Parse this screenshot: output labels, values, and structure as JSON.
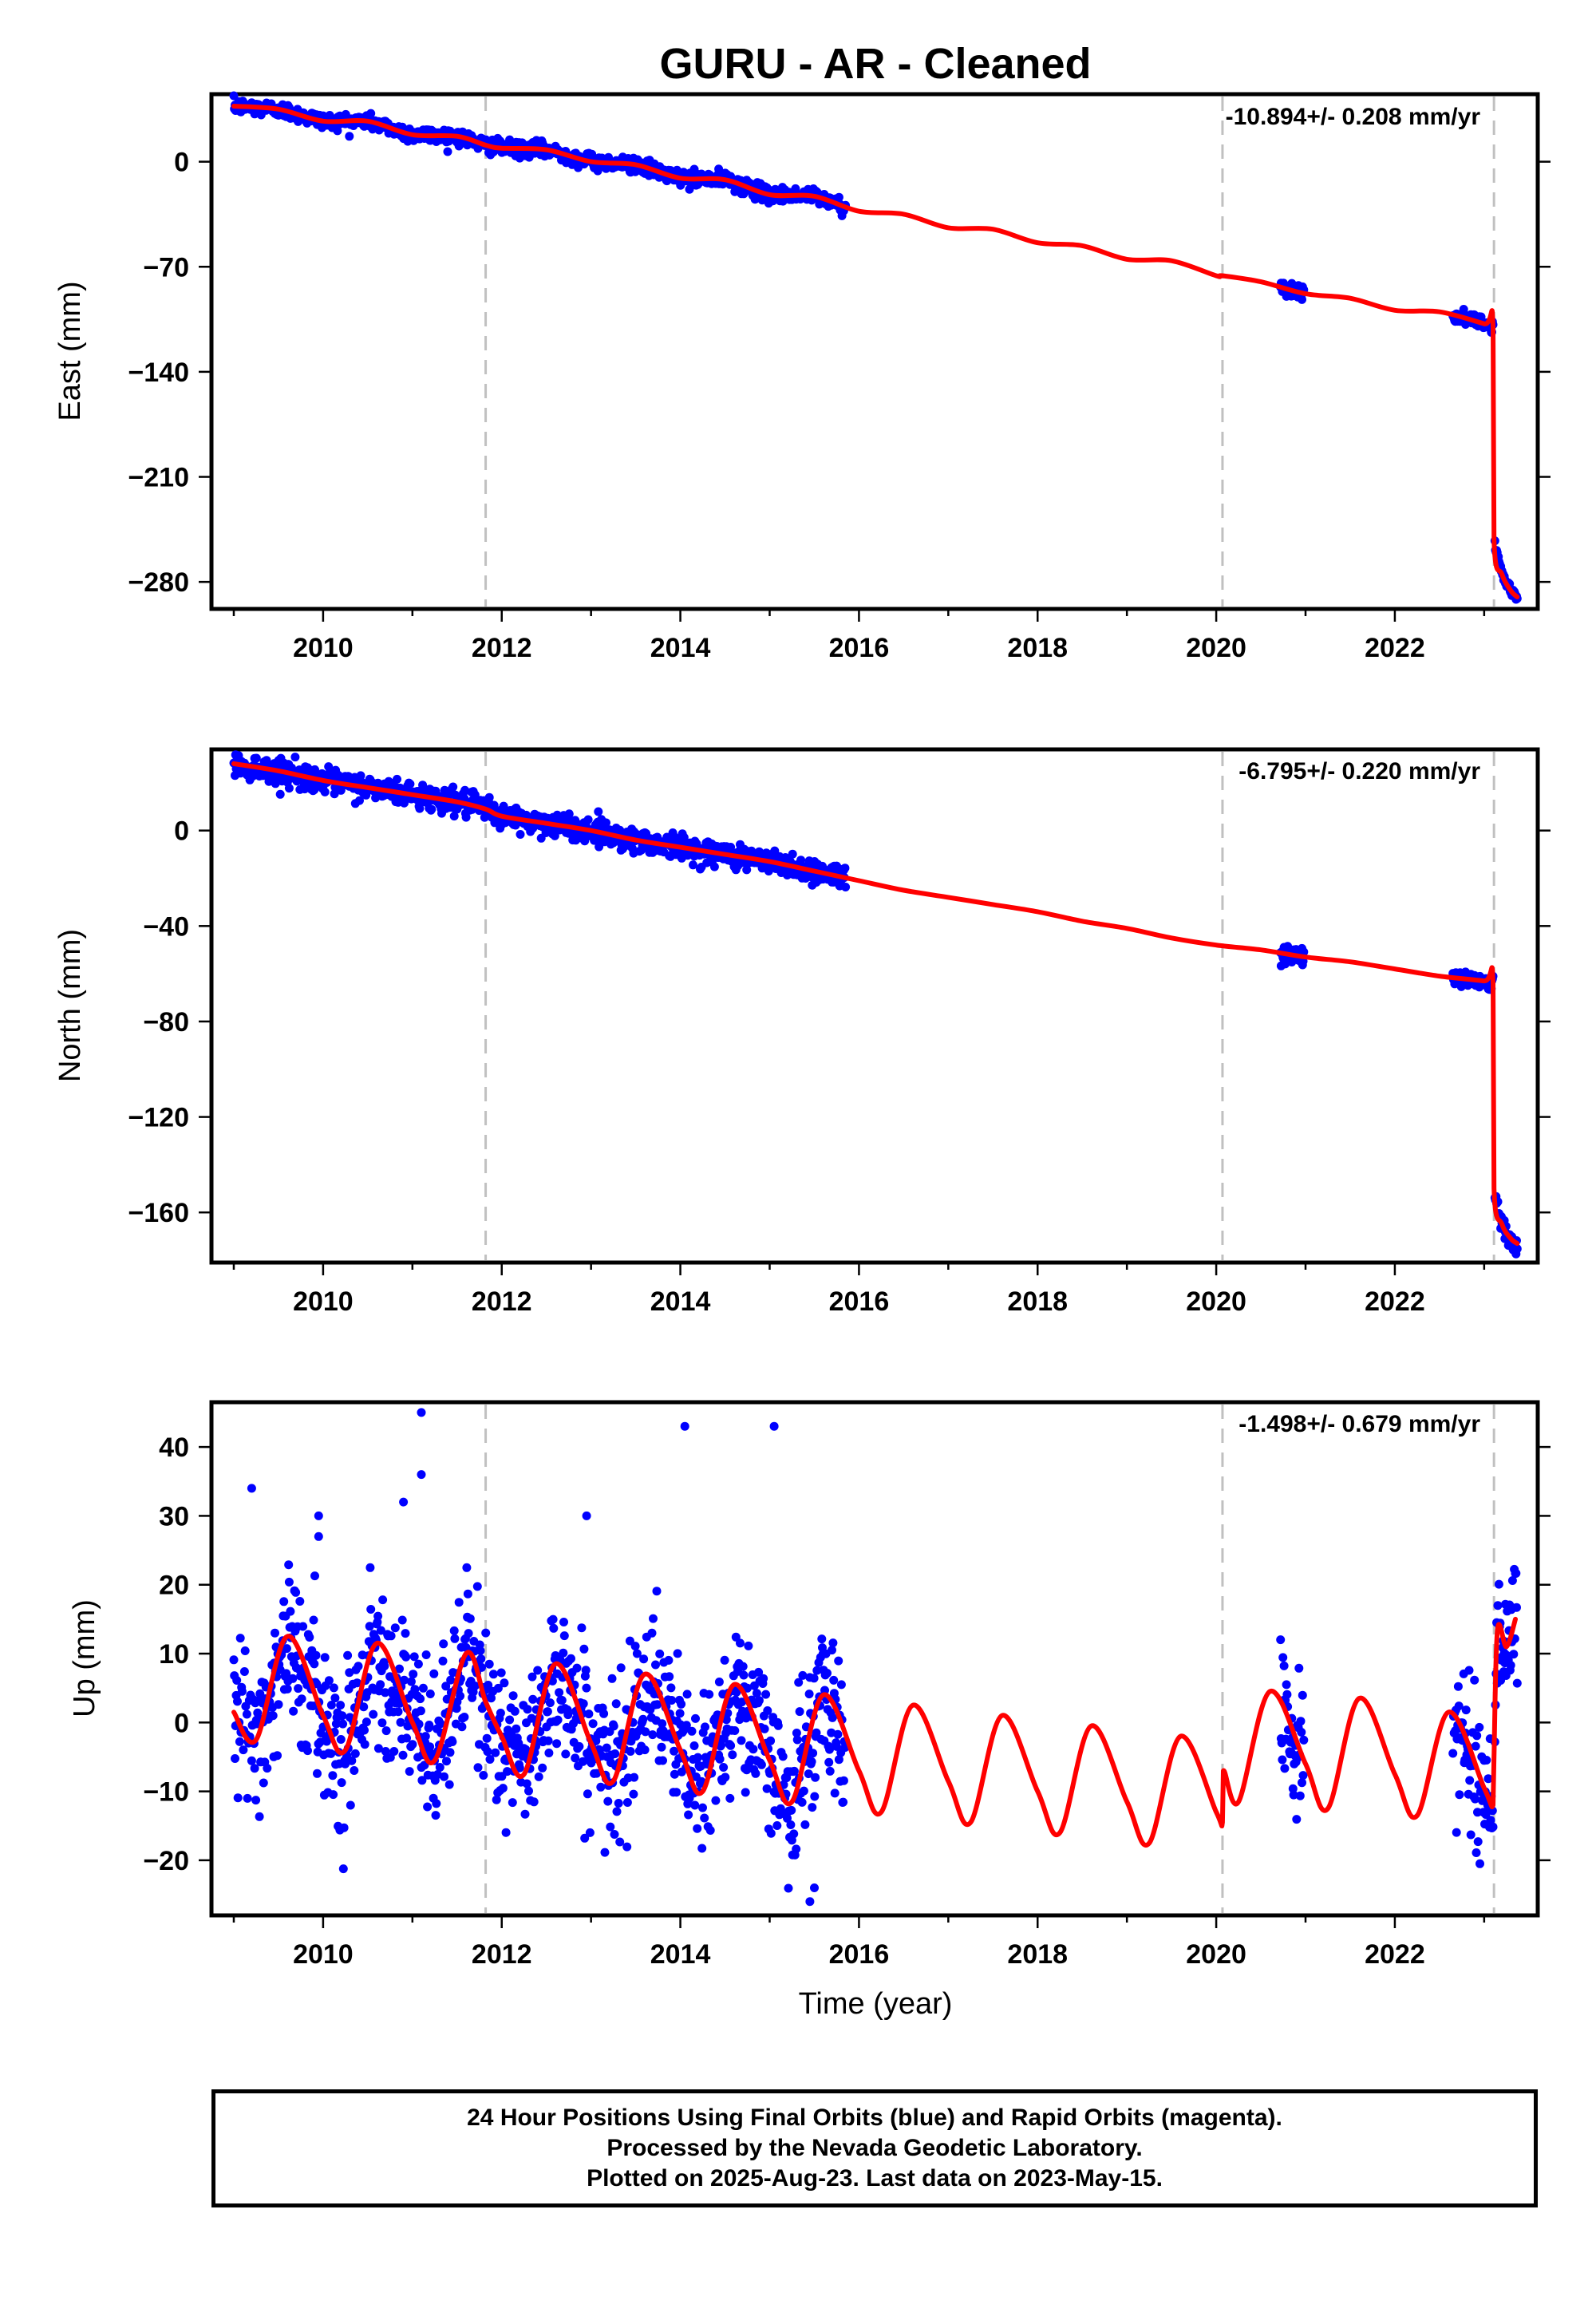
{
  "figure": {
    "title": "GURU  - AR - Cleaned",
    "xlabel": "Time (year)"
  },
  "footer": {
    "line1": "24 Hour Positions Using Final Orbits (blue) and Rapid Orbits (magenta).",
    "line2": "Processed by the Nevada Geodetic Laboratory.",
    "line3": "Plotted on 2025-Aug-23. Last data on 2023-May-15."
  },
  "colors": {
    "observed_points": "#0000ff",
    "model_fit": "#ff0000",
    "equipment_change_line": "#c0c0c0"
  },
  "chart_data": [
    {
      "type": "scatter",
      "panel": "east",
      "ylabel": "East (mm)",
      "rate_label": "-10.894+/- 0.208 mm/yr",
      "xlim": [
        2008.75,
        2023.6
      ],
      "ylim": [
        -298,
        45
      ],
      "xticks": [
        2010,
        2012,
        2014,
        2016,
        2018,
        2020,
        2022
      ],
      "yticks": [
        0,
        -70,
        -140,
        -210,
        -280
      ],
      "grid": false,
      "step_dates": [
        2011.82,
        2020.07,
        2023.11
      ],
      "segments": [
        {
          "x0": 2009.0,
          "x1": 2015.85,
          "base0": 36,
          "base1": -33,
          "noise": 2.5
        },
        {
          "x0": 2020.72,
          "x1": 2020.98,
          "base0": -86,
          "base1": -89,
          "noise": 2.5
        },
        {
          "x0": 2022.65,
          "x1": 2023.1,
          "base0": -108,
          "base1": -112,
          "noise": 2.0
        },
        {
          "x0": 2023.12,
          "x1": 2023.37,
          "base0": -256,
          "base1": -292,
          "noise": 1.5
        }
      ],
      "model_points": [
        [
          2009.0,
          37
        ],
        [
          2009.5,
          35
        ],
        [
          2010.0,
          27
        ],
        [
          2010.5,
          27
        ],
        [
          2011.0,
          18
        ],
        [
          2011.5,
          17
        ],
        [
          2011.82,
          11
        ],
        [
          2012.0,
          9
        ],
        [
          2012.5,
          8
        ],
        [
          2013.0,
          0
        ],
        [
          2013.5,
          -2
        ],
        [
          2014.0,
          -11
        ],
        [
          2014.5,
          -12
        ],
        [
          2015.0,
          -22
        ],
        [
          2015.5,
          -23
        ],
        [
          2016.0,
          -33
        ],
        [
          2016.5,
          -35
        ],
        [
          2017.0,
          -44
        ],
        [
          2017.5,
          -45
        ],
        [
          2018.0,
          -54
        ],
        [
          2018.5,
          -56
        ],
        [
          2019.0,
          -65
        ],
        [
          2019.5,
          -66
        ],
        [
          2020.0,
          -76
        ],
        [
          2020.07,
          -76
        ],
        [
          2020.5,
          -80
        ],
        [
          2021.0,
          -88
        ],
        [
          2021.5,
          -91
        ],
        [
          2022.0,
          -99
        ],
        [
          2022.5,
          -100
        ],
        [
          2023.0,
          -108
        ],
        [
          2023.1,
          -110
        ],
        [
          2023.11,
          -252
        ],
        [
          2023.2,
          -275
        ],
        [
          2023.3,
          -286
        ],
        [
          2023.37,
          -290
        ]
      ]
    },
    {
      "type": "scatter",
      "panel": "north",
      "ylabel": "North (mm)",
      "rate_label": "-6.795+/- 0.220 mm/yr",
      "xlim": [
        2008.75,
        2023.6
      ],
      "ylim": [
        -181,
        34
      ],
      "xticks": [
        2010,
        2012,
        2014,
        2016,
        2018,
        2020,
        2022
      ],
      "yticks": [
        0,
        -40,
        -80,
        -120,
        -160
      ],
      "grid": false,
      "step_dates": [
        2011.82,
        2020.07,
        2023.11
      ],
      "segments": [
        {
          "x0": 2009.0,
          "x1": 2015.85,
          "base0": 28,
          "base1": -20,
          "noise": 2.5
        },
        {
          "x0": 2020.72,
          "x1": 2020.98,
          "base0": -50,
          "base1": -52,
          "noise": 2.0
        },
        {
          "x0": 2022.65,
          "x1": 2023.1,
          "base0": -61,
          "base1": -64,
          "noise": 1.8
        },
        {
          "x0": 2023.12,
          "x1": 2023.37,
          "base0": -152,
          "base1": -174,
          "noise": 2.0
        }
      ],
      "model_points": [
        [
          2009.0,
          28
        ],
        [
          2009.5,
          25
        ],
        [
          2010.0,
          21
        ],
        [
          2010.5,
          18
        ],
        [
          2011.0,
          15
        ],
        [
          2011.5,
          12
        ],
        [
          2011.82,
          9
        ],
        [
          2012.0,
          6
        ],
        [
          2012.5,
          3
        ],
        [
          2013.0,
          0
        ],
        [
          2013.5,
          -4
        ],
        [
          2014.0,
          -7
        ],
        [
          2014.5,
          -10
        ],
        [
          2015.0,
          -13
        ],
        [
          2015.5,
          -17
        ],
        [
          2016.0,
          -21
        ],
        [
          2016.5,
          -25
        ],
        [
          2017.0,
          -28
        ],
        [
          2017.5,
          -31
        ],
        [
          2018.0,
          -34
        ],
        [
          2018.5,
          -38
        ],
        [
          2019.0,
          -41
        ],
        [
          2019.5,
          -45
        ],
        [
          2020.0,
          -48
        ],
        [
          2020.5,
          -50
        ],
        [
          2021.0,
          -53
        ],
        [
          2021.5,
          -55
        ],
        [
          2022.0,
          -58
        ],
        [
          2022.5,
          -61
        ],
        [
          2023.0,
          -63
        ],
        [
          2023.1,
          -64
        ],
        [
          2023.11,
          -150
        ],
        [
          2023.2,
          -165
        ],
        [
          2023.3,
          -171
        ],
        [
          2023.37,
          -173
        ]
      ]
    },
    {
      "type": "scatter",
      "panel": "up",
      "ylabel": "Up (mm)",
      "rate_label": "-1.498+/- 0.679 mm/yr",
      "xlim": [
        2008.75,
        2023.6
      ],
      "ylim": [
        -28,
        46.5
      ],
      "xticks": [
        2010,
        2012,
        2014,
        2016,
        2018,
        2020,
        2022
      ],
      "yticks": [
        40,
        30,
        20,
        10,
        0,
        -10,
        -20
      ],
      "grid": false,
      "step_dates": [
        2011.82,
        2020.07,
        2023.11
      ],
      "segments": [
        {
          "x0": 2009.0,
          "x1": 2015.85,
          "base0": 2,
          "base1": -5,
          "noise": 5.5,
          "seasonal": 8
        },
        {
          "x0": 2020.72,
          "x1": 2020.98,
          "base0": -5,
          "base1": -8,
          "noise": 5.0,
          "seasonal": 0
        },
        {
          "x0": 2022.65,
          "x1": 2023.1,
          "base0": -3,
          "base1": -11,
          "noise": 5.0,
          "seasonal": 0
        },
        {
          "x0": 2023.12,
          "x1": 2023.37,
          "base0": 12,
          "base1": 13,
          "noise": 4.5,
          "seasonal": 0
        }
      ],
      "outliers": [
        [
          2009.2,
          34
        ],
        [
          2009.95,
          30
        ],
        [
          2009.95,
          27
        ],
        [
          2010.9,
          32
        ],
        [
          2011.1,
          45
        ],
        [
          2011.1,
          36
        ],
        [
          2012.95,
          30
        ],
        [
          2014.05,
          43
        ],
        [
          2015.05,
          43
        ],
        [
          2015.5,
          -24
        ],
        [
          2015.45,
          -26
        ]
      ],
      "model_points": [
        [
          2009.0,
          1.5
        ],
        [
          2009.25,
          -2.5
        ],
        [
          2009.6,
          12.5
        ],
        [
          2010.0,
          1
        ],
        [
          2010.25,
          -4
        ],
        [
          2010.6,
          11.5
        ],
        [
          2011.0,
          0
        ],
        [
          2011.25,
          -5.5
        ],
        [
          2011.6,
          10
        ],
        [
          2011.82,
          3
        ],
        [
          2012.0,
          -2
        ],
        [
          2012.25,
          -7.5
        ],
        [
          2012.6,
          8.5
        ],
        [
          2013.0,
          -3
        ],
        [
          2013.25,
          -8.5
        ],
        [
          2013.6,
          7
        ],
        [
          2014.0,
          -4
        ],
        [
          2014.25,
          -10
        ],
        [
          2014.6,
          5.5
        ],
        [
          2015.0,
          -5.5
        ],
        [
          2015.25,
          -11.5
        ],
        [
          2015.6,
          4
        ],
        [
          2016.0,
          -7
        ],
        [
          2016.25,
          -13
        ],
        [
          2016.6,
          2.5
        ],
        [
          2017.0,
          -8.5
        ],
        [
          2017.25,
          -14.5
        ],
        [
          2017.6,
          1
        ],
        [
          2018.0,
          -10
        ],
        [
          2018.25,
          -16
        ],
        [
          2018.6,
          -0.5
        ],
        [
          2019.0,
          -11.5
        ],
        [
          2019.25,
          -17.5
        ],
        [
          2019.6,
          -2
        ],
        [
          2020.0,
          -13
        ],
        [
          2020.07,
          -14.5
        ],
        [
          2020.08,
          -7
        ],
        [
          2020.25,
          -11.5
        ],
        [
          2020.6,
          4.5
        ],
        [
          2021.0,
          -6
        ],
        [
          2021.25,
          -12.5
        ],
        [
          2021.6,
          3.5
        ],
        [
          2022.0,
          -7.5
        ],
        [
          2022.25,
          -13.5
        ],
        [
          2022.6,
          1.5
        ],
        [
          2023.0,
          -9.5
        ],
        [
          2023.1,
          -12
        ],
        [
          2023.11,
          -5
        ],
        [
          2023.15,
          13.5
        ],
        [
          2023.25,
          11
        ],
        [
          2023.35,
          15
        ]
      ]
    }
  ]
}
